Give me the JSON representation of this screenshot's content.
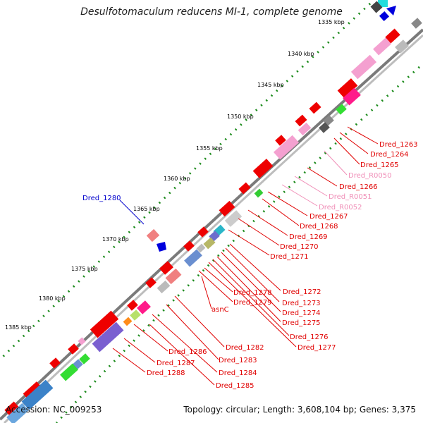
{
  "title": "Desulfotomaculum reducens MI-1, complete genome",
  "footer": {
    "accession": "Accession: NC_009253",
    "summary": "Topology: circular; Length: 3,608,104 bp; Genes: 3,375"
  },
  "scale": {
    "labels": [
      "1335 kbp",
      "1340 kbp",
      "1345 kbp",
      "1350 kbp",
      "1355 kbp",
      "1360 kbp",
      "1365 kbp",
      "1370 kbp",
      "1375 kbp",
      "1380 kbp",
      "1385 kbp"
    ]
  },
  "gene_labels": {
    "right": [
      {
        "text": "Dred_1263",
        "color": "#e00000"
      },
      {
        "text": "Dred_1264",
        "color": "#e00000"
      },
      {
        "text": "Dred_1265",
        "color": "#e00000"
      },
      {
        "text": "Dred_R0050",
        "color": "#f08fb8"
      },
      {
        "text": "Dred_1266",
        "color": "#e00000"
      },
      {
        "text": "Dred_R0051",
        "color": "#f08fb8"
      },
      {
        "text": "Dred_R0052",
        "color": "#f08fb8"
      },
      {
        "text": "Dred_1267",
        "color": "#e00000"
      },
      {
        "text": "Dred_1268",
        "color": "#e00000"
      },
      {
        "text": "Dred_1269",
        "color": "#e00000"
      },
      {
        "text": "Dred_1270",
        "color": "#e00000"
      },
      {
        "text": "Dred_1271",
        "color": "#e00000"
      },
      {
        "text": "Dred_1272",
        "color": "#e00000"
      },
      {
        "text": "Dred_1273",
        "color": "#e00000"
      },
      {
        "text": "Dred_1274",
        "color": "#e00000"
      },
      {
        "text": "Dred_1275",
        "color": "#e00000"
      },
      {
        "text": "Dred_1276",
        "color": "#e00000"
      },
      {
        "text": "Dred_1277",
        "color": "#e00000"
      },
      {
        "text": "Dred_1278",
        "color": "#e00000"
      },
      {
        "text": "Dred_1279",
        "color": "#e00000"
      },
      {
        "text": "asnC",
        "color": "#e00000"
      },
      {
        "text": "Dred_1282",
        "color": "#e00000"
      },
      {
        "text": "Dred_1283",
        "color": "#e00000"
      },
      {
        "text": "Dred_1284",
        "color": "#e00000"
      },
      {
        "text": "Dred_1285",
        "color": "#e00000"
      },
      {
        "text": "Dred_1286",
        "color": "#e00000"
      },
      {
        "text": "Dred_1287",
        "color": "#e00000"
      },
      {
        "text": "Dred_1288",
        "color": "#e00000"
      }
    ],
    "left": [
      {
        "text": "Dred_1280",
        "color": "#0000cc"
      }
    ]
  },
  "colors": {
    "backbone": "#8a8a8a",
    "tick_dots": "#1a8a1a",
    "forward_gene": "#ee0000",
    "rna": "#f2a2cc",
    "reverse_gene": "#ee0000"
  }
}
